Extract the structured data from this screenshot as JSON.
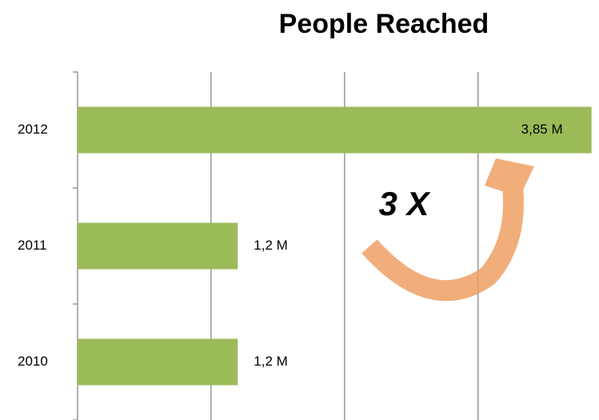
{
  "chart_data": {
    "type": "bar",
    "orientation": "horizontal",
    "title": "People Reached",
    "categories": [
      "2010",
      "2011",
      "2012"
    ],
    "values": [
      1.2,
      1.2,
      3.85
    ],
    "value_labels": [
      "1,2 M",
      "1,2 M",
      "3,85 M"
    ],
    "color": "#9bbb59",
    "xlim": [
      0,
      3.9
    ],
    "xticks": [
      0,
      1,
      2,
      3
    ],
    "grid": true,
    "annotation": "3 X"
  }
}
